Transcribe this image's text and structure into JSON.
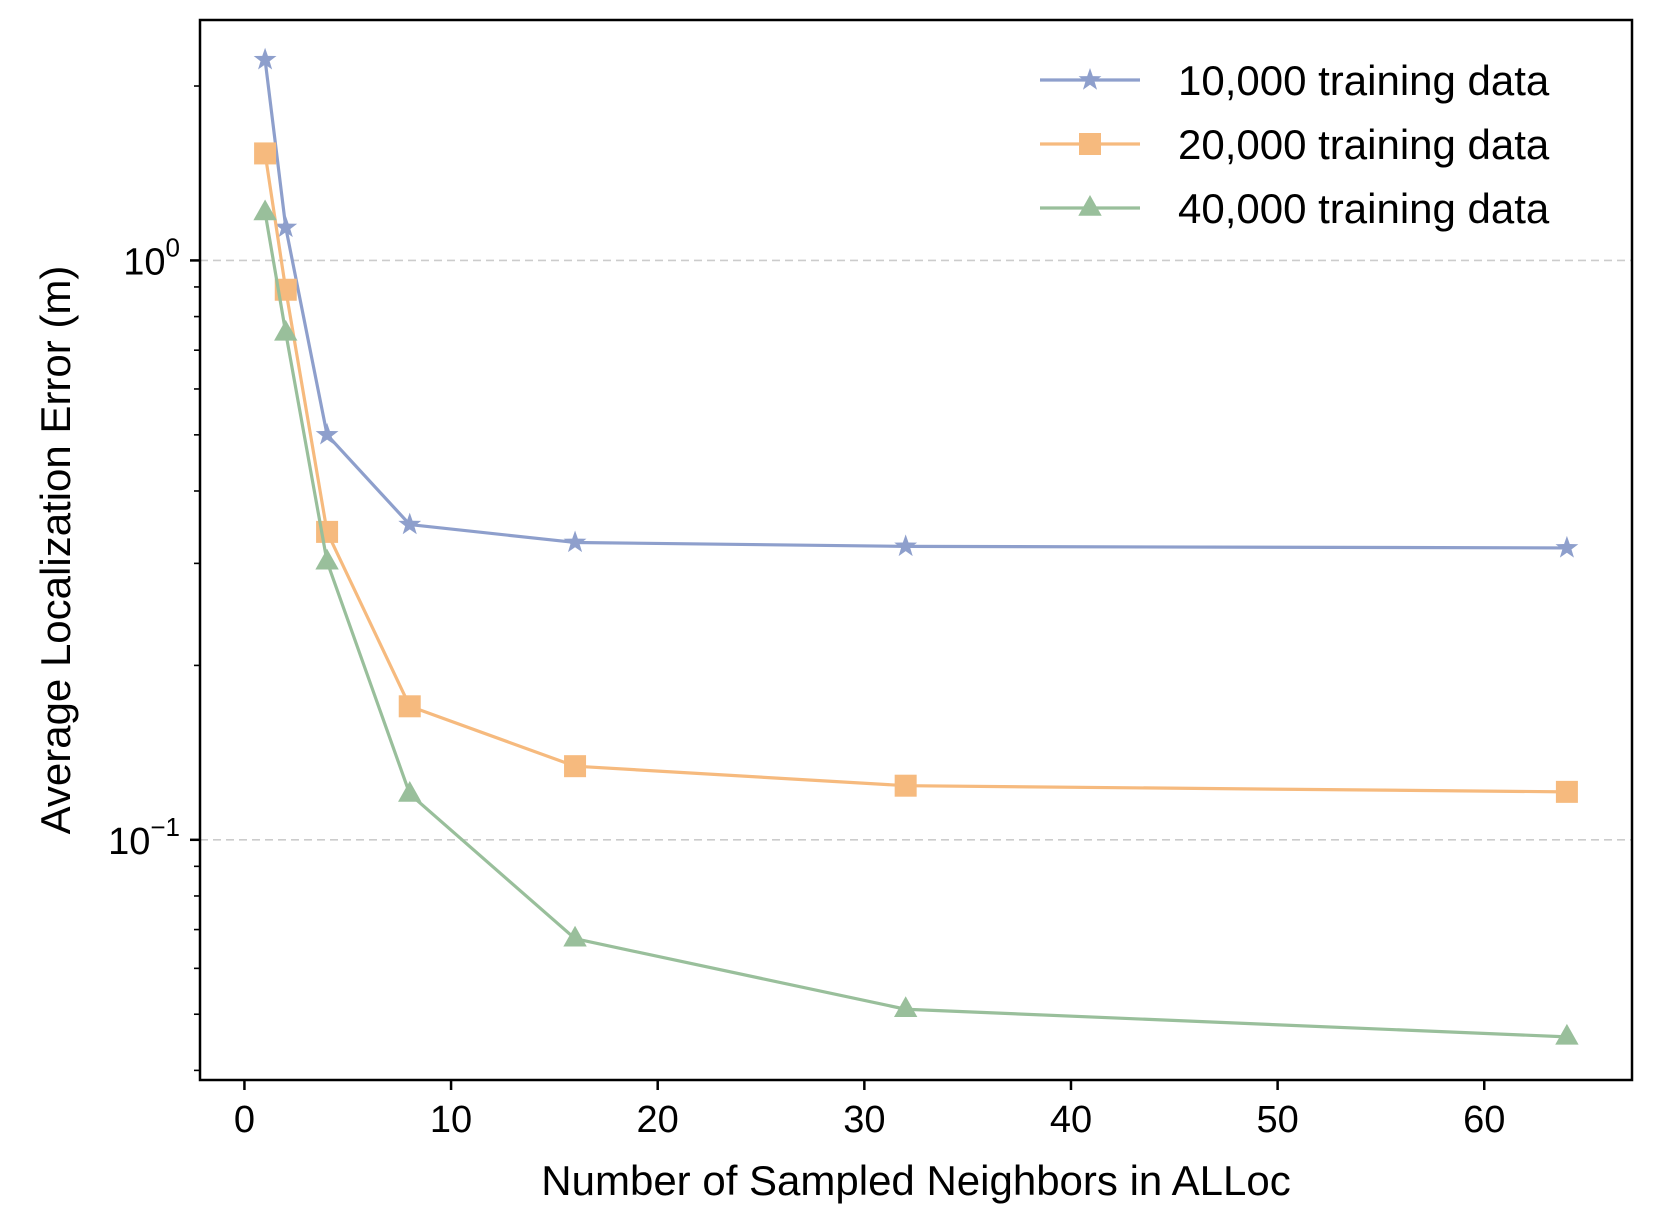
{
  "chart_data": {
    "type": "line",
    "title": "",
    "xlabel": "Number of Sampled Neighbors in ALLoc",
    "ylabel": "Average Localization Error (m)",
    "x": [
      1,
      2,
      4,
      8,
      16,
      32,
      64
    ],
    "xlim": [
      -2.15,
      67.15
    ],
    "ylim": [
      0.0385,
      2.6
    ],
    "yscale": "log",
    "x_ticks": [
      0,
      10,
      20,
      30,
      40,
      50,
      60
    ],
    "y_ticks": [
      {
        "base": "10",
        "exp": "0",
        "value": 1
      },
      {
        "base": "10",
        "exp": "−1",
        "value": 0.1
      }
    ],
    "grid": "horizontal dashed at major y ticks",
    "legend_position": "top-right",
    "series": [
      {
        "name": "10,000 training data",
        "marker": "star",
        "color": "#8E9FCC",
        "values": [
          2.22,
          1.14,
          0.5,
          0.35,
          0.326,
          0.321,
          0.319
        ]
      },
      {
        "name": "20,000 training data",
        "marker": "square",
        "color": "#F6BA7E",
        "values": [
          1.53,
          0.89,
          0.34,
          0.17,
          0.134,
          0.124,
          0.121
        ]
      },
      {
        "name": "40,000 training data",
        "marker": "triangle",
        "color": "#99BF9B",
        "values": [
          1.21,
          0.75,
          0.302,
          0.12,
          0.0675,
          0.051,
          0.0457
        ]
      }
    ]
  }
}
